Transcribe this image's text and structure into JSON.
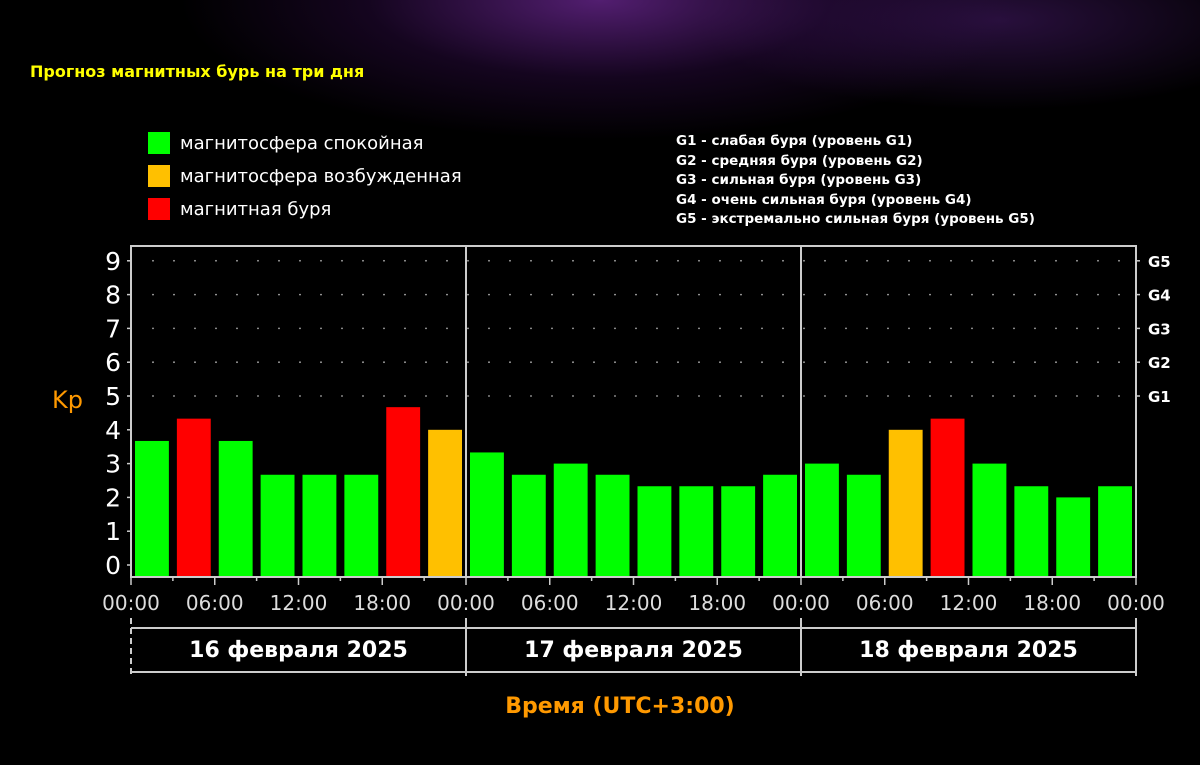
{
  "title": "Прогноз магнитных бурь на три дня",
  "legend": [
    {
      "label": "магнитосфера спокойная",
      "color": "#00ff00"
    },
    {
      "label": "магнитосфера возбужденная",
      "color": "#ffc000"
    },
    {
      "label": "магнитная буря",
      "color": "#ff0000"
    }
  ],
  "g_levels": [
    "G1 - слабая буря (уровень G1)",
    "G2 - средняя буря (уровень G2)",
    "G3 - сильная буря (уровень G3)",
    "G4 - очень сильная буря (уровень G4)",
    "G5 - экстремально сильная буря (уровень G5)"
  ],
  "chart_data": {
    "type": "bar",
    "ylabel": "Kp",
    "xlabel": "Время (UTC+3:00)",
    "ylim": [
      0,
      9
    ],
    "yticks": [
      "0",
      "1",
      "2",
      "3",
      "4",
      "5",
      "6",
      "7",
      "8",
      "9"
    ],
    "right_ticks": [
      {
        "value": 5,
        "label": "G1"
      },
      {
        "value": 6,
        "label": "G2"
      },
      {
        "value": 7,
        "label": "G3"
      },
      {
        "value": 8,
        "label": "G4"
      },
      {
        "value": 9,
        "label": "G5"
      }
    ],
    "xtick_labels": [
      "00:00",
      "06:00",
      "12:00",
      "18:00"
    ],
    "final_xtick": "00:00",
    "days": [
      {
        "label": "16 февраля 2025",
        "values": [
          3.67,
          4.33,
          3.67,
          2.67,
          2.67,
          2.67,
          4.67,
          4.0
        ],
        "levels": [
          "calm",
          "storm",
          "calm",
          "calm",
          "calm",
          "calm",
          "storm",
          "active"
        ]
      },
      {
        "label": "17 февраля 2025",
        "values": [
          3.33,
          2.67,
          3.0,
          2.67,
          2.33,
          2.33,
          2.33,
          2.67
        ],
        "levels": [
          "calm",
          "calm",
          "calm",
          "calm",
          "calm",
          "calm",
          "calm",
          "calm"
        ]
      },
      {
        "label": "18 февраля 2025",
        "values": [
          3.0,
          2.67,
          4.0,
          4.33,
          3.0,
          2.33,
          2.0,
          2.33
        ],
        "levels": [
          "calm",
          "calm",
          "active",
          "storm",
          "calm",
          "calm",
          "calm",
          "calm"
        ]
      }
    ],
    "colors": {
      "calm": "#00ff00",
      "active": "#ffc000",
      "storm": "#ff0000",
      "axis_label": "#ff9900"
    }
  }
}
